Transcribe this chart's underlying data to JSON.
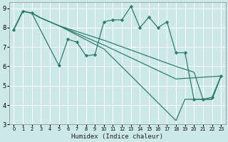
{
  "bg_color": "#cce8e8",
  "grid_color": "#ffffff",
  "line_color": "#2d7d6e",
  "xlabel": "Humidex (Indice chaleur)",
  "xlim": [
    -0.5,
    23.5
  ],
  "ylim": [
    3,
    9.3
  ],
  "xticks": [
    0,
    1,
    2,
    3,
    4,
    5,
    6,
    7,
    8,
    9,
    10,
    11,
    12,
    13,
    14,
    15,
    16,
    17,
    18,
    19,
    20,
    21,
    22,
    23
  ],
  "yticks": [
    3,
    4,
    5,
    6,
    7,
    8,
    9
  ],
  "series": [
    {
      "x": [
        0,
        1,
        2,
        5,
        6,
        7,
        8,
        9,
        10,
        11,
        12,
        13,
        14,
        15,
        16,
        17,
        18,
        19,
        20,
        21,
        22,
        23
      ],
      "y": [
        7.9,
        8.85,
        8.75,
        6.05,
        7.4,
        7.25,
        6.55,
        6.6,
        8.3,
        8.4,
        8.4,
        9.1,
        8.0,
        8.55,
        8.0,
        8.3,
        6.7,
        6.7,
        4.3,
        4.3,
        4.4,
        5.5
      ],
      "markers": true
    },
    {
      "x": [
        0,
        1,
        2,
        3,
        4,
        5,
        10,
        18,
        19,
        20,
        21,
        22,
        23
      ],
      "y": [
        7.9,
        8.85,
        8.75,
        8.5,
        8.3,
        8.1,
        7.35,
        6.0,
        5.85,
        5.7,
        4.3,
        4.3,
        5.5
      ],
      "markers": false
    },
    {
      "x": [
        0,
        1,
        2,
        3,
        4,
        5,
        10,
        18,
        19,
        20,
        21,
        22,
        23
      ],
      "y": [
        7.9,
        8.85,
        8.75,
        8.5,
        8.3,
        8.1,
        6.9,
        3.2,
        4.3,
        4.3,
        4.3,
        4.3,
        5.5
      ],
      "markers": false
    },
    {
      "x": [
        0,
        1,
        2,
        3,
        4,
        5,
        10,
        18,
        23
      ],
      "y": [
        7.9,
        8.85,
        8.75,
        8.5,
        8.3,
        8.1,
        7.1,
        5.35,
        5.5
      ],
      "markers": false
    }
  ]
}
